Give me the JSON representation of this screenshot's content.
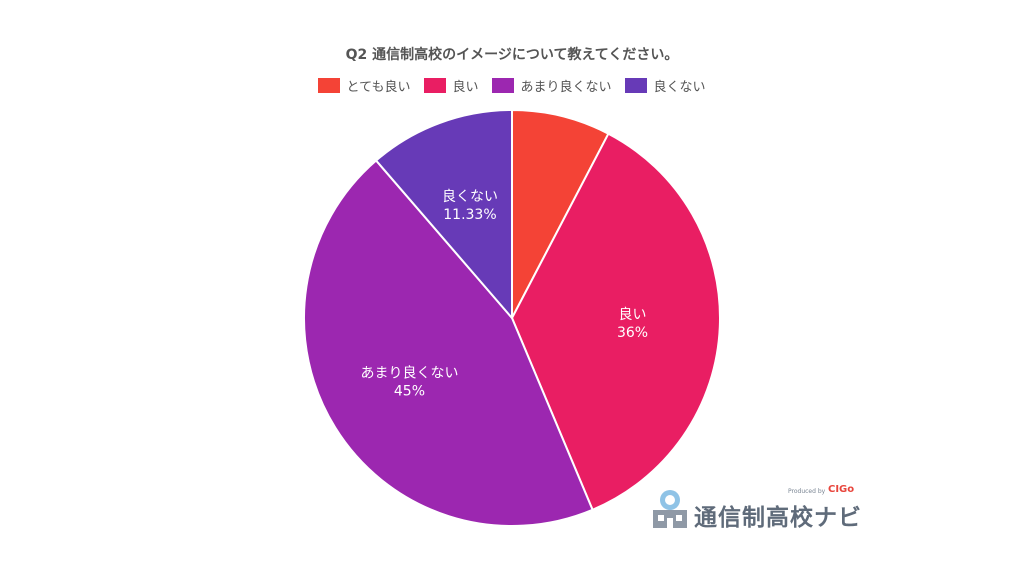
{
  "chart_data": {
    "type": "pie",
    "title": "Q2 通信制高校のイメージについて教えてください。",
    "categories": [
      "とても良い",
      "良い",
      "あまり良くない",
      "良くない"
    ],
    "values": [
      7.67,
      36,
      45,
      11.33
    ],
    "data_labels": [
      "",
      "36%",
      "45%",
      "11.33%"
    ],
    "colors": [
      "#f44336",
      "#e91e63",
      "#9c27b0",
      "#673ab7"
    ],
    "legend": "top",
    "start_angle": "12 o'clock, clockwise"
  },
  "watermark": {
    "icon": "school-building-icon",
    "text": "通信制高校ナビ",
    "produced_by": "Produced by",
    "brand": "CIGo"
  }
}
